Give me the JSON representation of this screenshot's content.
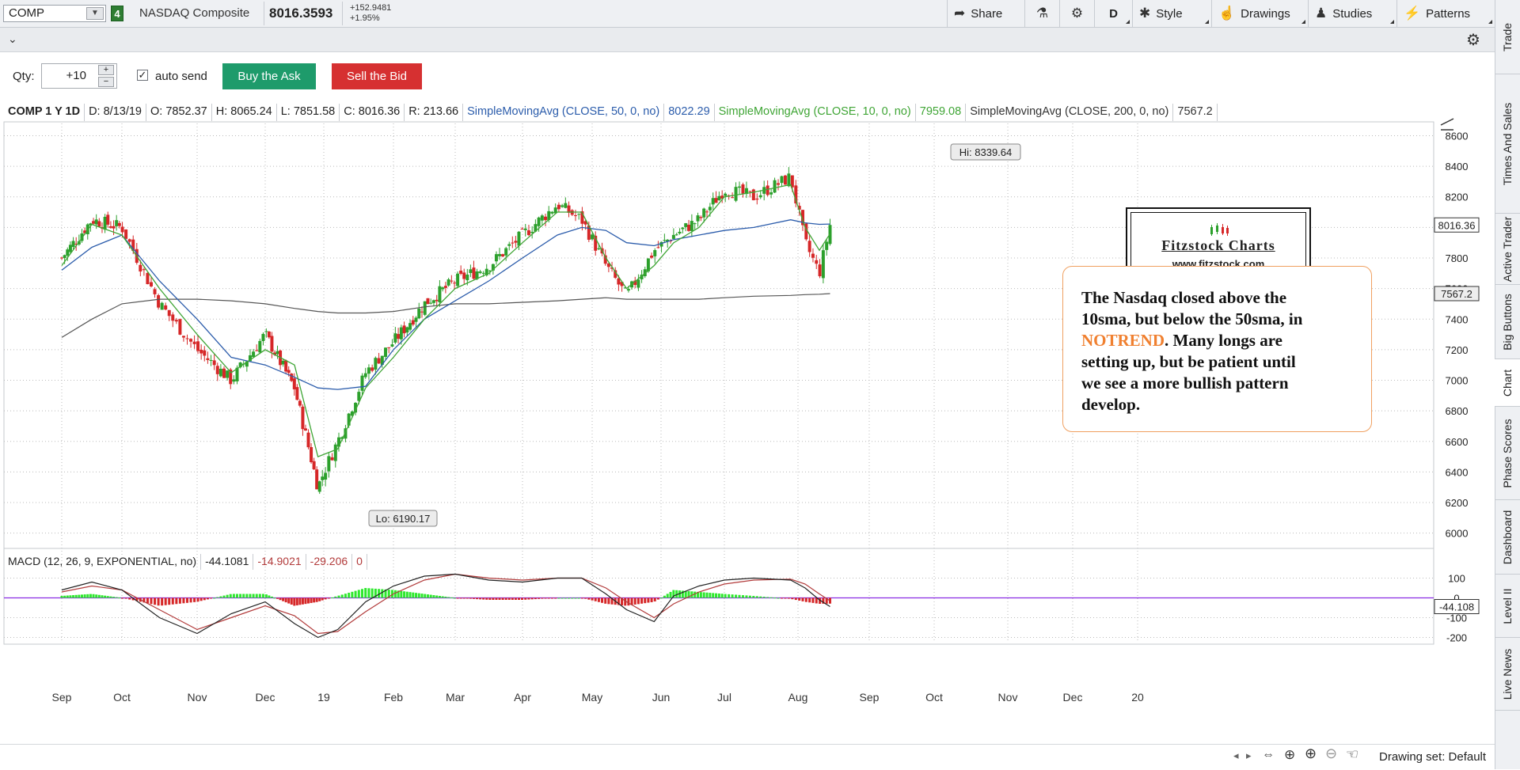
{
  "header": {
    "symbol": "COMP",
    "link_number": "4",
    "description": "NASDAQ Composite",
    "last": "8016.3593",
    "net_change": "+152.9481",
    "pct_change": "+1.95%",
    "buttons": {
      "share": "Share",
      "aggregation": "D",
      "style": "Style",
      "drawings": "Drawings",
      "studies": "Studies",
      "patterns": "Patterns"
    }
  },
  "order": {
    "qty_label": "Qty:",
    "qty_value": "+10",
    "auto_send_label": "auto send",
    "auto_send_checked": true,
    "buy_label": "Buy the Ask",
    "sell_label": "Sell the Bid",
    "buy_color": "#1e9b6b",
    "sell_color": "#d63031"
  },
  "study_header": {
    "title": "COMP 1 Y 1D",
    "date": "D: 8/13/19",
    "open": "O: 7852.37",
    "high": "H: 8065.24",
    "low": "L: 7851.58",
    "close": "C: 8016.36",
    "range": "R: 213.66",
    "sma50_label": "SimpleMovingAvg (CLOSE, 50, 0, no)",
    "sma50_value": "8022.29",
    "sma10_label": "SimpleMovingAvg (CLOSE, 10, 0, no)",
    "sma10_value": "7959.08",
    "sma200_label": "SimpleMovingAvg (CLOSE, 200, 0, no)",
    "sma200_value": "7567.2"
  },
  "macd_header": {
    "label": "MACD (12, 26, 9, EXPONENTIAL, no)",
    "value": "-44.1081",
    "avg": "-14.9021",
    "diff": "-29.206",
    "zero": "0"
  },
  "chart_data": {
    "type": "line",
    "title": "COMP 1 Y 1D",
    "price_axis": {
      "ticks": [
        6000,
        6200,
        6400,
        6600,
        6800,
        7000,
        7200,
        7400,
        7600,
        7800,
        8000,
        8200,
        8400,
        8600
      ],
      "min": 5900,
      "max": 8680
    },
    "macd_axis": {
      "ticks": [
        100,
        0,
        -100,
        -200
      ],
      "min": -230,
      "max": 150
    },
    "x_labels": [
      "Sep",
      "Oct",
      "Nov",
      "Dec",
      "19",
      "Feb",
      "Mar",
      "Apr",
      "May",
      "Jun",
      "Jul",
      "Aug",
      "Sep",
      "Oct",
      "Nov",
      "Dec",
      "20"
    ],
    "x_label_months_index": [
      0,
      1,
      2,
      3,
      4,
      5,
      6,
      7,
      8,
      9,
      10,
      11,
      12,
      13,
      14,
      15,
      16
    ],
    "close_path_months": [
      0,
      0.5,
      1.0,
      1.5,
      2.0,
      2.5,
      3.0,
      3.5,
      3.9,
      4.2,
      4.6,
      5.0,
      5.5,
      6.0,
      6.5,
      7.0,
      7.5,
      7.85,
      8.2,
      8.5,
      8.9,
      9.2,
      9.6,
      10.0,
      10.4,
      10.9,
      11.1,
      11.3,
      11.45
    ],
    "close_path_values": [
      7800,
      8050,
      8000,
      7500,
      7200,
      7000,
      7300,
      6950,
      6300,
      6600,
      7050,
      7250,
      7500,
      7650,
      7750,
      7950,
      8150,
      8050,
      7750,
      7550,
      7850,
      7950,
      8050,
      8250,
      8200,
      8330,
      7900,
      7700,
      8016
    ],
    "sma10_values": [
      7750,
      8020,
      7950,
      7600,
      7300,
      7050,
      7200,
      7100,
      6500,
      6550,
      6950,
      7150,
      7400,
      7600,
      7700,
      7900,
      8100,
      8100,
      7800,
      7600,
      7750,
      7900,
      8000,
      8200,
      8230,
      8280,
      8000,
      7850,
      7959
    ],
    "sma50_values": [
      7720,
      7870,
      7950,
      7650,
      7400,
      7150,
      7100,
      7020,
      6950,
      6940,
      6960,
      7200,
      7400,
      7520,
      7650,
      7800,
      7950,
      8000,
      7980,
      7900,
      7880,
      7920,
      7950,
      7980,
      8000,
      8050,
      8030,
      8020,
      8022
    ],
    "sma200_values": [
      7280,
      7400,
      7500,
      7530,
      7530,
      7520,
      7500,
      7470,
      7450,
      7440,
      7440,
      7450,
      7480,
      7500,
      7500,
      7510,
      7520,
      7530,
      7540,
      7530,
      7530,
      7530,
      7530,
      7540,
      7550,
      7555,
      7560,
      7563,
      7567
    ],
    "macd_values": [
      40,
      80,
      40,
      -100,
      -180,
      -80,
      -20,
      -130,
      -200,
      -160,
      -20,
      60,
      110,
      120,
      90,
      80,
      100,
      100,
      20,
      -60,
      -120,
      10,
      60,
      90,
      100,
      90,
      50,
      -10,
      -44
    ],
    "macd_avg_values": [
      30,
      60,
      40,
      -60,
      -160,
      -100,
      -40,
      -90,
      -180,
      -170,
      -70,
      20,
      90,
      120,
      100,
      90,
      100,
      100,
      50,
      -20,
      -100,
      -30,
      30,
      70,
      90,
      95,
      70,
      20,
      -15
    ],
    "hi_label": "Hi: 8339.64",
    "lo_label": "Lo: 6190.17",
    "price_tags": {
      "last": "8016.36",
      "sma200": "7567.2",
      "macd": "-44.108"
    },
    "colors": {
      "up": "#2ca02c",
      "down": "#d62728",
      "sma10": "#3fa535",
      "sma50": "#2b5cab",
      "sma200": "#555555",
      "macd": "#222222",
      "macd_avg": "#b23b3b",
      "hist_up": "#2ee82e",
      "hist_down": "#d62728",
      "zero_line": "#8a2be2"
    }
  },
  "annotation": {
    "line1": "The Nasdaq closed above the",
    "line2": "10sma, but below the 50sma, in",
    "highlight": "NOTREND",
    "line3_rest": ".  Many longs are",
    "line4": "setting up, but be patient until",
    "line5": "we see a more bullish pattern",
    "line6": "develop.",
    "highlight_color": "#f08030"
  },
  "logo": {
    "title": "Fitzstock Charts",
    "url": "www.fitzstock.com"
  },
  "right_tabs": [
    "Trade",
    "Times And Sales",
    "Active Trader",
    "Big Buttons",
    "Chart",
    "Phase Scores",
    "Dashboard",
    "Level II",
    "Live News"
  ],
  "active_tab": "Chart",
  "bottom": {
    "drawing_set": "Drawing set: Default"
  }
}
